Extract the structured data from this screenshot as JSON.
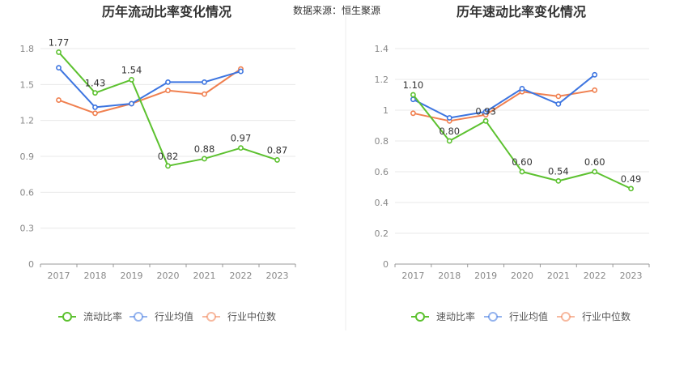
{
  "source_label": "数据来源：恒生聚源",
  "chart_data": [
    {
      "type": "line",
      "title": "历年流动比率变化情况",
      "categories": [
        "2017",
        "2018",
        "2019",
        "2020",
        "2021",
        "2022",
        "2023"
      ],
      "ylim": [
        0,
        1.8
      ],
      "yticks": [
        "0",
        "0.3",
        "0.6",
        "0.9",
        "1.2",
        "1.5",
        "1.8"
      ],
      "grid": true,
      "legend_position": "bottom",
      "series": [
        {
          "name": "流动比率",
          "color": "#5cc12f",
          "values": [
            1.77,
            1.43,
            1.54,
            0.82,
            0.88,
            0.97,
            0.87
          ],
          "labels": [
            "1.77",
            "1.43",
            "1.54",
            "0.82",
            "0.88",
            "0.97",
            "0.87"
          ]
        },
        {
          "name": "行业均值",
          "color": "#3d75e0",
          "values": [
            1.64,
            1.31,
            1.34,
            1.52,
            1.52,
            1.61,
            null
          ]
        },
        {
          "name": "行业中位数",
          "color": "#f08050",
          "values": [
            1.37,
            1.26,
            1.34,
            1.45,
            1.42,
            1.63,
            null
          ]
        }
      ]
    },
    {
      "type": "line",
      "title": "历年速动比率变化情况",
      "categories": [
        "2017",
        "2018",
        "2019",
        "2020",
        "2021",
        "2022",
        "2023"
      ],
      "ylim": [
        0,
        1.4
      ],
      "yticks": [
        "0",
        "0.2",
        "0.4",
        "0.6",
        "0.8",
        "1",
        "1.2",
        "1.4"
      ],
      "grid": true,
      "legend_position": "bottom",
      "series": [
        {
          "name": "速动比率",
          "color": "#5cc12f",
          "values": [
            1.1,
            0.8,
            0.93,
            0.6,
            0.54,
            0.6,
            0.49
          ],
          "labels": [
            "1.10",
            "0.80",
            "0.93",
            "0.60",
            "0.54",
            "0.60",
            "0.49"
          ]
        },
        {
          "name": "行业均值",
          "color": "#3d75e0",
          "values": [
            1.07,
            0.95,
            0.99,
            1.14,
            1.04,
            1.23,
            null
          ]
        },
        {
          "name": "行业中位数",
          "color": "#f08050",
          "values": [
            0.98,
            0.93,
            0.97,
            1.12,
            1.09,
            1.13,
            null
          ]
        }
      ]
    }
  ]
}
